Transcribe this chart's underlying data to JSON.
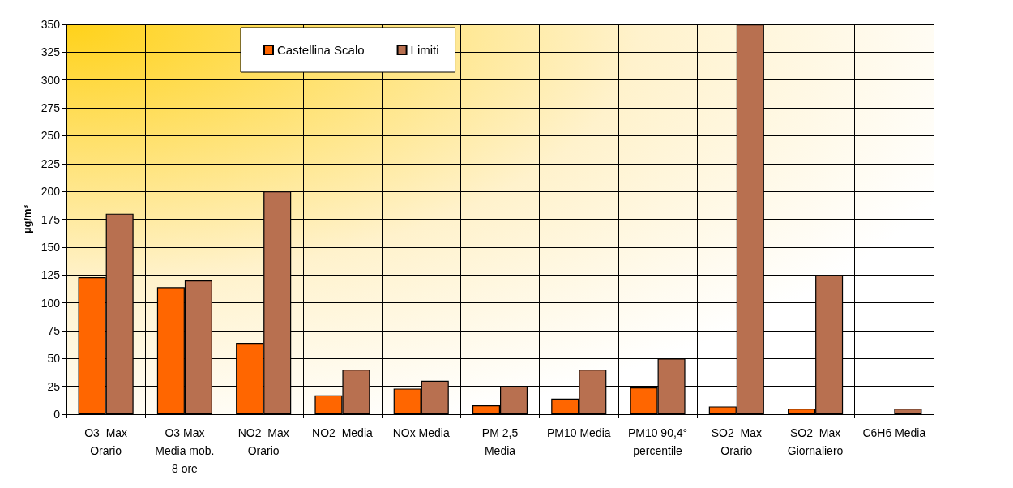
{
  "chart_data": {
    "type": "bar",
    "ylabel": "µg/m³",
    "categories": [
      "O3  Max\nOrario",
      "O3 Max\nMedia mob.\n8 ore",
      "NO2  Max\nOrario",
      "NO2  Media",
      "NOx Media",
      "PM 2,5\nMedia",
      "PM10 Media",
      "PM10 90,4°\npercentile",
      "SO2  Max\nOrario",
      "SO2  Max\nGiornaliero",
      "C6H6 Media"
    ],
    "series": [
      {
        "name": "Castellina Scalo",
        "color": "#ff6600",
        "values": [
          123,
          114,
          64,
          17,
          23,
          8,
          14,
          24,
          7,
          5,
          null
        ]
      },
      {
        "name": "Limiti",
        "color": "#b87050",
        "values": [
          180,
          120,
          200,
          40,
          30,
          25,
          40,
          50,
          350,
          125,
          5
        ]
      }
    ],
    "ylim": [
      0,
      350
    ],
    "yticks": [
      0,
      25,
      50,
      75,
      100,
      125,
      150,
      175,
      200,
      225,
      250,
      275,
      300,
      325,
      350
    ],
    "grid": true,
    "legend": "top"
  }
}
